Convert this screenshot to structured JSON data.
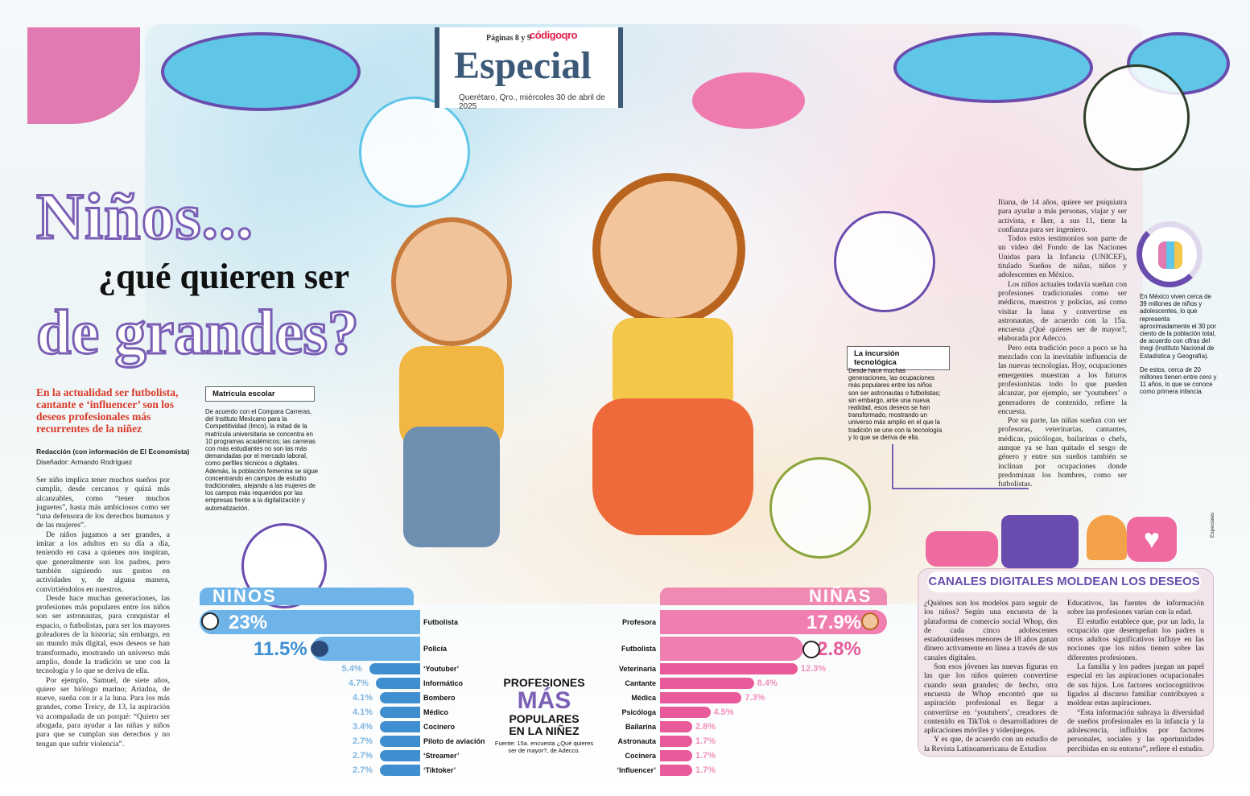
{
  "masthead": {
    "pages": "Páginas 8 y 9",
    "logo": "códigoqro",
    "section": "Especial",
    "dateline": "Querétaro, Qro., miércoles 30 de abril de 2025"
  },
  "headline": {
    "line1": "Niños...",
    "line2": "¿qué quieren ser",
    "line3": "de grandes?"
  },
  "deck": "En la actualidad ser futbolista, cantante e ‘influencer’ son los deseos profesionales más recurrentes de la niñez",
  "byline": "Redacción (con información de El Economista)",
  "designer": "Diseñador: Armando Rodríguez",
  "body_left": [
    "Ser niño implica tener muchos sueños por cumplir, desde cercanos y quizá más alcanzables, como “tener muchos juguetes”, hasta más ambiciosos como ser “una defensora de los derechos humanos y de las mujeres”.",
    "De niños jugamos a ser grandes, a imitar a los adultos en su día a día, teniendo en casa a quienes nos inspiran, que generalmente son los padres, pero también siguiendo sus gustos en actividades y, de alguna manera, convirtiéndolos en nuestros.",
    "Desde hace muchas generaciones, las profesiones más populares entre los niños son ser astronautas, para conquistar el espacio, o futbolistas, para ser los mayores goleadores de la historia; sin embargo, en un mundo más digital, esos deseos se han transformado, mostrando un universo más amplio, donde la tradición se une con la tecnología y lo que se deriva de ella.",
    "Por ejemplo, Samuel, de siete años, quiere ser biólogo marino; Ariadna, de nueve, sueña con ir a la luna. Para los más grandes, como Treicy, de 13, la aspiración va acompañada de un porqué: “Quiero ser abogada, para ayudar a las niñas y niños para que se cumplan sus derechos y no tengan que sufrir violencia”."
  ],
  "box_matricula": {
    "title": "Matrícula escolar",
    "text": "De acuerdo con el Compara Carreras, del Instituto Mexicano para la Competitividad (Imco), la mitad de la matrícula universitaria se concentra en 10 programas académicos; las carreras con más estudiantes no son las más demandadas por el mercado laboral, como perfiles técnicos o digitales. Además, la población femenina se sigue concentrando en campos de estudio tradicionales, alejando a las mujeres de los campos más requeridos por las empresas frente a la digitalización y automatización."
  },
  "box_tecnologia": {
    "title": "La incursión tecnológica",
    "text": "Desde hace muchas generaciones, las ocupaciones más populares entre los niños son ser astronautas o futbolistas; sin embargo, ante una nueva realidad, esos deseos se han transformado, mostrando un universo más amplio en el que la tradición se une con la tecnología y lo que se deriva de ella."
  },
  "body_right": [
    "Iliana, de 14 años, quiere ser psiquiatra para ayudar a más personas, viajar y ser activista, e Iker, a sus 11, tiene la confianza para ser ingeniero.",
    "Todos estos testimonios son parte de un video del Fondo de las Naciones Unidas para la Infancia (UNICEF), titulado Sueños de niñas, niños y adolescentes en México.",
    "Los niños actuales todavía sueñan con profesiones tradicionales como ser médicos, maestros y policías, así como visitar la luna y convertirse en astronautas, de acuerdo con la 15a. encuesta ¿Qué quieres ser de mayor?, elaborada por Adecco.",
    "Pero esta tradición poco a poco se ha mezclado con la inevitable influencia de las nuevas tecnologías. Hoy, ocupaciones emergentes muestran a los futuros profesionistas todo lo que pueden alcanzar, por ejemplo, ser ‘youtubers’ o generadores de contenido, refiere la encuesta.",
    "Por su parte, las niñas sueñan con ser profesoras, veterinarias, cantantes, médicas, psicólogas, bailarinas o chefs, aunque ya se han quitado el sesgo de género y entre sus sueños también se inclinan por ocupaciones donde predominan los hombres, como ser futbolistas."
  ],
  "stats": {
    "p1": "En México viven cerca de 39 millones de niños y adolescentes, lo que representa aproximadamente el 30 por ciento de la población total, de acuerdo con cifras del Inegi (Instituto Nacional de Estadística y Geografía).",
    "p2": "De estos, cerca de 20 millones tienen entre cero y 11 años, lo que se conoce como primera infancia."
  },
  "social": {
    "title": "CANALES DIGITALES MOLDEAN LOS DESEOS",
    "col1": [
      "¿Quiénes son los modelos para seguir de los niños? Según una encuesta de la plataforma de comercio social Whop, dos de cada cinco adolescentes estadounidenses menores de 18 años ganan dinero activamente en línea a través de sus canales digitales.",
      "Son esos jóvenes las nuevas figuras en las que los niños quieren convertirse cuando sean grandes; de hecho, otra encuesta de Whop encontró que su aspiración profesional es llegar a convertirse en ‘youtubers’, creadores de contenido en TikTok o desarrolladores de aplicaciones móviles y videojuegos.",
      "Y es que, de acuerdo con un estudio de la Revista Latinoamericana de Estudios"
    ],
    "col2": [
      "Educativos, las fuentes de información sobre las profesiones varían con la edad.",
      "El estudio establece que, por un lado, la ocupación que desempeñan los padres u otros adultos significativos influye en las nociones que los niños tienen sobre las diferentes profesiones.",
      "La familia y los padres juegan un papel especial en las aspiraciones ocupacionales de sus hijos. Los factores sociocognitivos ligados al discurso familiar contribuyen a moldear estas aspiraciones.",
      "“Esta información subraya la diversidad de sueños profesionales en la infancia y la adolescencia, influidos por factores personales, sociales y las oportunidades percibidas en su entorno”, refiere el estudio."
    ]
  },
  "credit": "Especiales",
  "chart_data": {
    "type": "bar",
    "title": "PROFESIONES MÁS POPULARES EN LA NIÑEZ",
    "title_parts": [
      "PROFESIONES",
      "MÁS",
      "POPULARES",
      "EN LA NIÑEZ"
    ],
    "source": "Fuente: 15a. encuesta ¿Qué quieres ser de mayor?, de Adecco.",
    "unit": "%",
    "series": [
      {
        "name": "NIÑOS",
        "color": "#3f8fd0",
        "categories": [
          "Futbolista",
          "Policía",
          "‘Youtuber’",
          "Informático",
          "Bombero",
          "Médico",
          "Cocinero",
          "Piloto de aviación",
          "‘Streamer’",
          "‘Tiktoker’"
        ],
        "values": [
          23,
          11.5,
          5.4,
          4.7,
          4.1,
          4.1,
          3.4,
          2.7,
          2.7,
          2.7
        ],
        "labels": [
          "23%",
          "11.5%",
          "5.4%",
          "4.7%",
          "4.1%",
          "4.1%",
          "3.4%",
          "2.7%",
          "2.7%",
          "2.7%"
        ]
      },
      {
        "name": "NIÑAS",
        "color": "#e85a9a",
        "categories": [
          "Profesora",
          "Futbolista",
          "Veterinaria",
          "Cantante",
          "Médica",
          "Psicóloga",
          "Bailarina",
          "Astronauta",
          "Cocinera",
          "‘Influencer’"
        ],
        "values": [
          17.9,
          12.8,
          12.3,
          8.4,
          7.3,
          4.5,
          2.8,
          1.7,
          1.7,
          1.7
        ],
        "labels": [
          "17.9%",
          "12.8%",
          "12.3%",
          "8.4%",
          "7.3%",
          "4.5%",
          "2.8%",
          "1.7%",
          "1.7%",
          "1.7%"
        ]
      }
    ]
  }
}
